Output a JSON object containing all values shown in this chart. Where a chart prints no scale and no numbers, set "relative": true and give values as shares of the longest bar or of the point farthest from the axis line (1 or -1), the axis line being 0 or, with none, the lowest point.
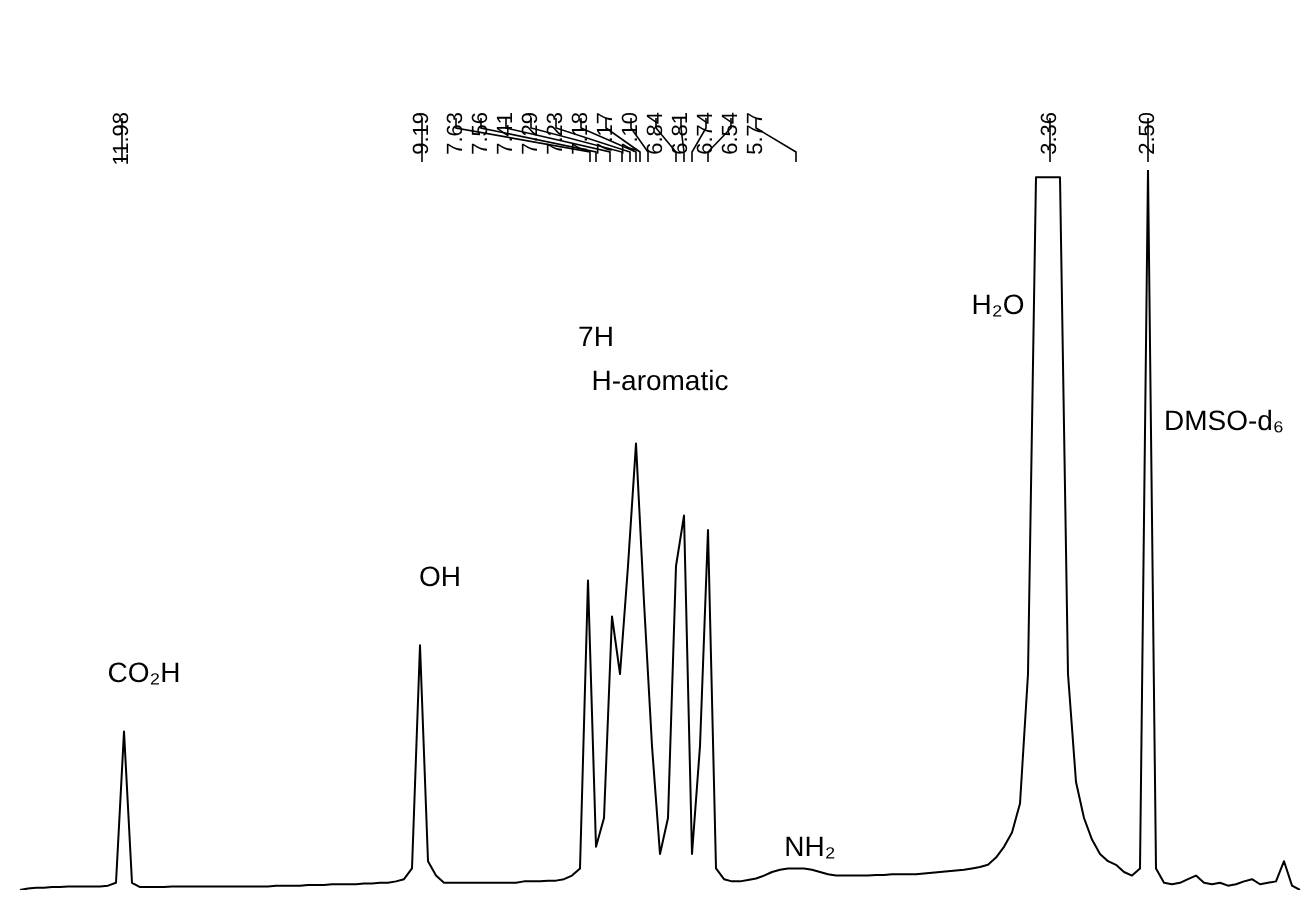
{
  "chart_data": {
    "type": "line",
    "relative": true,
    "tick_labels": false,
    "color": "#000000",
    "categories": [
      null,
      null,
      null,
      null,
      null,
      null,
      null,
      null,
      null,
      null,
      null,
      null,
      null,
      null,
      null,
      null,
      null,
      null,
      null,
      null,
      null,
      null,
      null,
      null,
      null,
      null,
      null,
      null,
      null,
      null,
      null,
      null,
      null,
      null,
      null,
      null,
      null,
      null,
      null,
      null,
      null,
      null,
      null,
      null,
      null,
      null,
      null,
      null,
      null,
      null,
      null,
      null,
      null,
      null,
      null,
      null,
      null,
      null,
      null,
      null,
      null,
      null,
      null,
      null,
      null,
      null,
      null,
      null,
      null,
      null,
      null,
      null,
      null,
      null,
      null,
      null,
      null,
      null,
      null,
      null,
      null,
      null,
      null,
      null,
      null,
      null,
      null,
      null,
      null,
      null,
      null,
      null,
      null,
      null,
      null,
      null,
      null,
      null,
      null,
      null,
      null,
      null,
      null,
      null,
      null,
      null,
      null,
      null,
      null,
      null,
      null,
      null,
      null,
      null,
      null,
      null,
      null,
      null,
      null,
      null,
      null,
      null,
      null,
      null,
      null,
      null,
      null,
      null,
      null,
      null,
      null,
      null,
      null,
      null,
      null,
      null,
      null,
      null,
      null,
      null,
      null,
      null,
      null,
      null,
      null,
      null,
      null,
      null,
      null,
      null,
      null,
      null,
      null,
      null,
      null,
      null,
      null,
      null,
      null,
      null,
      null
    ],
    "values": [
      0,
      0.002,
      0.003,
      0.003,
      0.004,
      0.004,
      0.005,
      0.005,
      0.005,
      0.005,
      0.005,
      0.006,
      0.01,
      0.22,
      0.01,
      0.004,
      0.004,
      0.004,
      0.004,
      0.005,
      0.005,
      0.005,
      0.005,
      0.005,
      0.005,
      0.005,
      0.005,
      0.005,
      0.005,
      0.005,
      0.005,
      0.005,
      0.006,
      0.006,
      0.006,
      0.006,
      0.007,
      0.007,
      0.007,
      0.008,
      0.008,
      0.008,
      0.008,
      0.009,
      0.009,
      0.01,
      0.01,
      0.012,
      0.015,
      0.03,
      0.34,
      0.04,
      0.02,
      0.01,
      0.01,
      0.01,
      0.01,
      0.01,
      0.01,
      0.01,
      0.01,
      0.01,
      0.01,
      0.012,
      0.012,
      0.012,
      0.013,
      0.013,
      0.015,
      0.02,
      0.03,
      0.43,
      0.06,
      0.1,
      0.38,
      0.3,
      0.45,
      0.62,
      0.4,
      0.2,
      0.05,
      0.1,
      0.45,
      0.52,
      0.05,
      0.2,
      0.5,
      0.03,
      0.015,
      0.012,
      0.012,
      0.014,
      0.016,
      0.02,
      0.025,
      0.028,
      0.03,
      0.03,
      0.03,
      0.028,
      0.025,
      0.022,
      0.02,
      0.02,
      0.02,
      0.02,
      0.02,
      0.021,
      0.021,
      0.022,
      0.022,
      0.022,
      0.022,
      0.023,
      0.024,
      0.025,
      0.026,
      0.027,
      0.028,
      0.03,
      0.032,
      0.035,
      0.045,
      0.06,
      0.08,
      0.12,
      0.3,
      0.99,
      0.99,
      0.99,
      0.99,
      0.3,
      0.15,
      0.1,
      0.07,
      0.05,
      0.04,
      0.035,
      0.025,
      0.02,
      0.03,
      1.0,
      0.03,
      0.01,
      0.008,
      0.01,
      0.015,
      0.02,
      0.01,
      0.008,
      0.01,
      0.006,
      0.008,
      0.012,
      0.015,
      0.008,
      0.01,
      0.012,
      0.04,
      0.006,
      0
    ],
    "annotations": [
      "11.98",
      "9.19",
      "7.63",
      "7.56",
      "7.41",
      "7.29",
      "7.23",
      "7.18",
      "7.17",
      "7.10",
      "6.84",
      "6.81",
      "6.74",
      "6.54",
      "5.77",
      "3.36",
      "2.50",
      "CO₂H",
      "OH",
      "7H",
      "H-aromatic",
      "NH₂",
      "H₂O",
      "DMSO-d₆"
    ]
  }
}
